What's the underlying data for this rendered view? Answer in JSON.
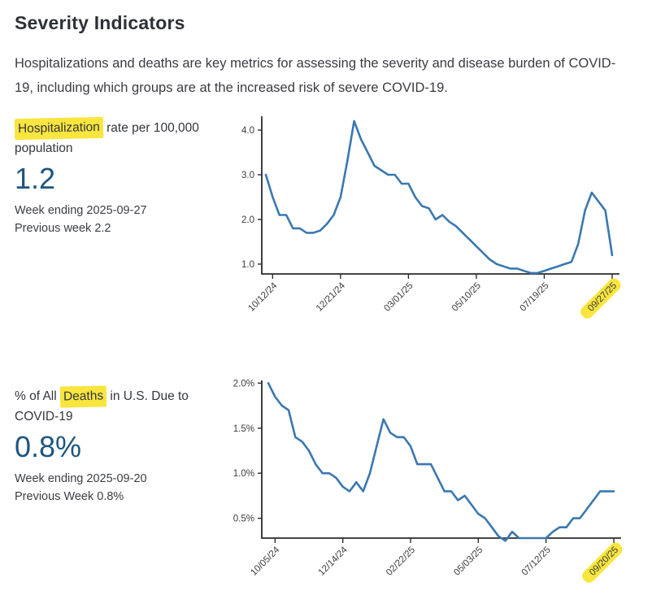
{
  "page": {
    "title": "Severity Indicators",
    "description": "Hospitalizations and deaths are key metrics for assessing the severity and disease burden of COVID-19, including which groups are at the increased risk of severe COVID-19."
  },
  "colors": {
    "accent_blue": "#1d567f",
    "line_blue": "#3a78b0",
    "highlight_yellow": "#f8e53e",
    "axis": "#2b2b2b",
    "tick_text": "#3b3b3b"
  },
  "stats": [
    {
      "label_prefix": "",
      "label_highlight": "Hospitalization",
      "label_suffix": " rate per 100,000 population",
      "value": "1.2",
      "week_ending": "Week ending 2025-09-27",
      "previous": "Previous week 2.2"
    },
    {
      "label_prefix": "% of All ",
      "label_highlight": "Deaths",
      "label_suffix": " in U.S. Due to COVID-19",
      "value": "0.8%",
      "week_ending": "Week ending 2025-09-20",
      "previous": "Previous Week 0.8%"
    }
  ],
  "chart_data": [
    {
      "type": "line",
      "name": "hospitalization-rate",
      "title": "Hospitalization rate per 100,000 population",
      "x_unit": "week ending date",
      "x_tick_labels": [
        "10/12/24",
        "12/21/24",
        "03/01/25",
        "05/10/25",
        "07/19/25",
        "09/27/25"
      ],
      "x_tick_indices": [
        1,
        11,
        21,
        31,
        41,
        51
      ],
      "highlight_last_tick": true,
      "y_ticks": [
        1.0,
        2.0,
        3.0,
        4.0
      ],
      "y_tick_labels": [
        "1.0",
        "2.0",
        "3.0",
        "4.0"
      ],
      "ylim": [
        0.78,
        4.31
      ],
      "grid": false,
      "legend": "none",
      "values": [
        3.0,
        2.5,
        2.1,
        2.1,
        1.8,
        1.8,
        1.7,
        1.7,
        1.75,
        1.9,
        2.1,
        2.5,
        3.3,
        4.2,
        3.8,
        3.5,
        3.2,
        3.1,
        3.0,
        3.0,
        2.8,
        2.8,
        2.5,
        2.3,
        2.25,
        2.0,
        2.1,
        1.95,
        1.85,
        1.7,
        1.55,
        1.4,
        1.25,
        1.1,
        1.0,
        0.95,
        0.9,
        0.9,
        0.85,
        0.8,
        0.8,
        0.85,
        0.9,
        0.95,
        1.0,
        1.05,
        1.45,
        2.2,
        2.6,
        2.4,
        2.2,
        1.2
      ]
    },
    {
      "type": "line",
      "name": "percent-deaths",
      "title": "% of All Deaths in U.S. Due to COVID-19",
      "x_unit": "week ending date",
      "x_tick_labels": [
        "10/05/24",
        "12/14/24",
        "02/22/25",
        "05/03/25",
        "07/12/25",
        "09/20/25"
      ],
      "x_tick_indices": [
        1,
        11,
        21,
        31,
        41,
        51
      ],
      "highlight_last_tick": true,
      "y_ticks": [
        0.5,
        1.0,
        1.5,
        2.0
      ],
      "y_tick_labels": [
        "0.5%",
        "1.0%",
        "1.5%",
        "2.0%"
      ],
      "ylim": [
        0.28,
        2.03
      ],
      "grid": false,
      "legend": "none",
      "values": [
        2.0,
        1.85,
        1.75,
        1.7,
        1.4,
        1.35,
        1.25,
        1.1,
        1.0,
        1.0,
        0.95,
        0.85,
        0.8,
        0.9,
        0.8,
        1.0,
        1.3,
        1.6,
        1.45,
        1.4,
        1.4,
        1.3,
        1.1,
        1.1,
        1.1,
        0.95,
        0.8,
        0.8,
        0.7,
        0.75,
        0.65,
        0.55,
        0.5,
        0.4,
        0.3,
        0.25,
        0.35,
        0.28,
        0.28,
        0.28,
        0.28,
        0.28,
        0.35,
        0.4,
        0.4,
        0.5,
        0.5,
        0.6,
        0.7,
        0.8,
        0.8,
        0.8
      ]
    }
  ]
}
